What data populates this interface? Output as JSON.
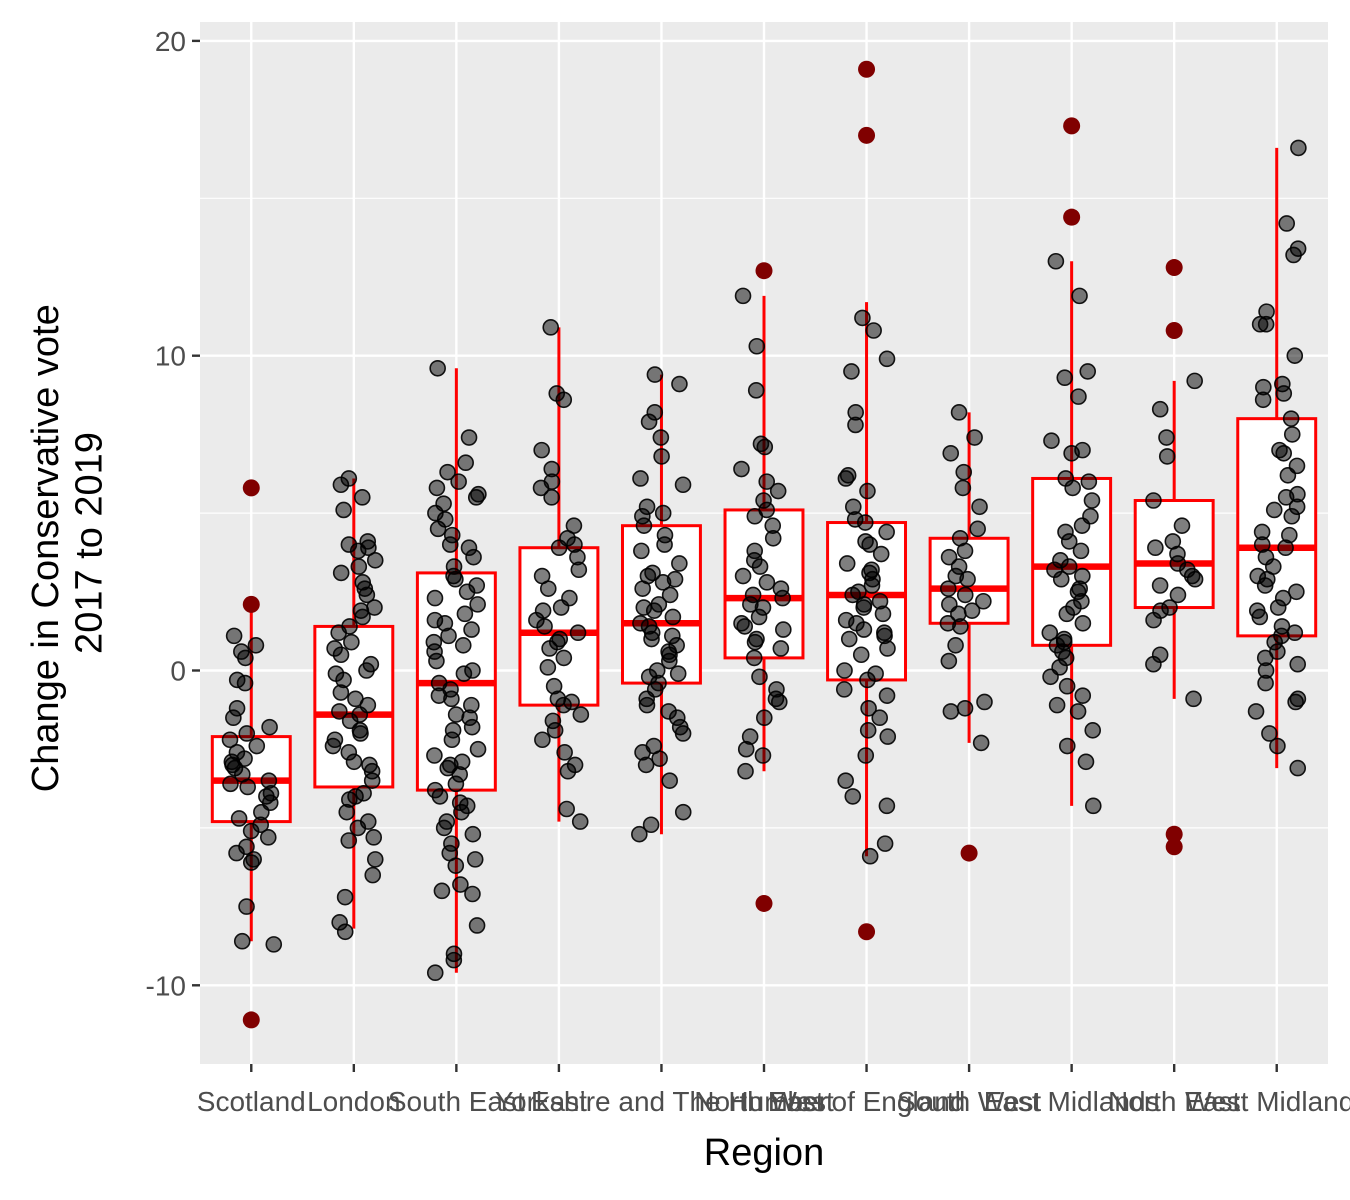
{
  "chart_data": {
    "type": "box",
    "xlabel": "Region",
    "ylabel_lines": [
      "Change in Conservative vote",
      "2017 to 2019"
    ],
    "ylim": [
      -12.5,
      20.6
    ],
    "y_ticks": [
      -10,
      0,
      10,
      20
    ],
    "y_tick_labels": [
      "-10",
      "0",
      "10",
      "20"
    ],
    "grid": true,
    "legend": "none",
    "colors": {
      "panel": "#ebebeb",
      "grid": "#ffffff",
      "box": "#ff0000",
      "box_fill": "#ffffff",
      "point": "#000000",
      "outlier": "#800000"
    },
    "categories": [
      "Scotland",
      "London",
      "South East",
      "East",
      "Yorkshire and The Humber",
      "North West",
      "East of England",
      "South West",
      "East Midlands",
      "North East",
      "West Midlands"
    ],
    "boxes": [
      {
        "q1": -4.8,
        "median": -3.5,
        "q3": -2.1,
        "whisker_low": -8.6,
        "whisker_high": 2.2,
        "outliers": [
          5.8,
          2.1,
          -11.1
        ]
      },
      {
        "q1": -3.7,
        "median": -1.4,
        "q3": 1.4,
        "whisker_low": -8.2,
        "whisker_high": 6.1,
        "outliers": []
      },
      {
        "q1": -3.8,
        "median": -0.4,
        "q3": 3.1,
        "whisker_low": -9.6,
        "whisker_high": 9.6,
        "outliers": []
      },
      {
        "q1": -1.1,
        "median": 1.2,
        "q3": 3.9,
        "whisker_low": -4.8,
        "whisker_high": 10.9,
        "outliers": []
      },
      {
        "q1": -0.4,
        "median": 1.5,
        "q3": 4.6,
        "whisker_low": -5.2,
        "whisker_high": 9.4,
        "outliers": []
      },
      {
        "q1": 0.4,
        "median": 2.3,
        "q3": 5.1,
        "whisker_low": -3.2,
        "whisker_high": 11.9,
        "outliers": [
          12.7,
          -7.4
        ]
      },
      {
        "q1": -0.3,
        "median": 2.4,
        "q3": 4.7,
        "whisker_low": -5.9,
        "whisker_high": 11.7,
        "outliers": [
          19.1,
          17.0,
          -8.3
        ]
      },
      {
        "q1": 1.5,
        "median": 2.6,
        "q3": 4.2,
        "whisker_low": -2.3,
        "whisker_high": 8.2,
        "outliers": [
          -5.8
        ]
      },
      {
        "q1": 0.8,
        "median": 3.3,
        "q3": 6.1,
        "whisker_low": -4.3,
        "whisker_high": 13.0,
        "outliers": [
          17.3,
          14.4
        ]
      },
      {
        "q1": 2.0,
        "median": 3.4,
        "q3": 5.4,
        "whisker_low": -0.9,
        "whisker_high": 9.2,
        "outliers": [
          12.8,
          10.8,
          -5.2,
          -5.6
        ]
      },
      {
        "q1": 1.1,
        "median": 3.9,
        "q3": 8.0,
        "whisker_low": -3.1,
        "whisker_high": 16.6,
        "outliers": []
      }
    ],
    "points": [
      [
        -3.5,
        -4.2,
        -2.9,
        -5.6,
        -1.8,
        -3.1,
        0.4,
        -6.1,
        -2.4,
        -4.7,
        1.1,
        -3.9,
        -7.5,
        -2.6,
        -5.1,
        0.6,
        -1.5,
        -4.5,
        -3.3,
        -8.6,
        -2.2,
        -5.3,
        -0.3,
        -4.0,
        -3.7,
        -1.2,
        -6.0,
        -2.8,
        -4.9,
        0.8,
        -3.0,
        -5.8,
        -2.0,
        -3.6,
        -8.7,
        -0.4
      ],
      [
        -1.4,
        3.8,
        -3.2,
        5.1,
        -5.4,
        0.9,
        -2.6,
        2.4,
        -4.1,
        6.1,
        -0.7,
        -8.0,
        1.7,
        -2.2,
        3.1,
        -3.9,
        4.1,
        -6.5,
        0.2,
        -1.1,
        2.8,
        -5.0,
        -2.9,
        3.5,
        -0.3,
        -7.2,
        1.2,
        -4.5,
        -1.9,
        5.5,
        0.5,
        -3.5,
        2.0,
        -8.3,
        -0.9,
        4.0,
        -2.4,
        -5.3,
        1.4,
        3.9,
        -4.0,
        -1.6,
        0.7,
        2.6,
        -3.0,
        5.9,
        -6.0,
        -0.1,
        1.9,
        -2.0,
        3.3,
        -4.8,
        -1.3,
        0.0
      ],
      [
        -0.4,
        5.6,
        -3.8,
        2.1,
        -6.2,
        7.4,
        -1.5,
        4.5,
        -9.2,
        0.9,
        -5.0,
        3.0,
        -2.7,
        6.3,
        -7.0,
        1.5,
        -4.3,
        9.6,
        -0.8,
        2.7,
        -3.3,
        5.0,
        -5.8,
        0.3,
        -1.9,
        4.0,
        -8.1,
        6.6,
        -2.2,
        1.8,
        -4.8,
        3.6,
        -0.1,
        -6.8,
        5.3,
        -3.1,
        2.3,
        -1.1,
        -9.6,
        0.6,
        -4.0,
        4.8,
        -2.5,
        6.0,
        -5.5,
        1.1,
        -3.6,
        -7.1,
        2.9,
        -0.6,
        5.8,
        -1.8,
        -4.5,
        3.3,
        0.0,
        -2.9,
        4.3,
        -6.0,
        1.3,
        -3.0,
        -9.0,
        0.8,
        2.5,
        -5.2,
        -1.4,
        5.5,
        -4.2,
        3.9,
        -0.9,
        1.6
      ],
      [
        1.2,
        3.9,
        -1.1,
        6.4,
        -3.2,
        2.3,
        8.8,
        -0.5,
        4.6,
        -4.4,
        1.6,
        10.9,
        -1.9,
        3.2,
        0.4,
        5.8,
        -2.6,
        7.0,
        1.9,
        -0.9,
        2.6,
        -4.8,
        3.6,
        0.9,
        -1.4,
        5.5,
        -2.2,
        8.6,
        1.4,
        4.2,
        0.1,
        -3.0,
        2.0,
        6.0,
        -1.0,
        3.0,
        0.7,
        -1.6,
        4.0,
        1.0
      ],
      [
        1.5,
        4.6,
        -0.4,
        3.0,
        8.2,
        -2.8,
        1.0,
        5.9,
        -5.2,
        2.4,
        0.0,
        6.8,
        -1.5,
        3.8,
        9.4,
        -0.9,
        1.9,
        -4.5,
        4.9,
        0.5,
        2.9,
        -2.0,
        7.4,
        -0.2,
        1.2,
        5.2,
        -3.5,
        2.1,
        -1.1,
        4.3,
        0.8,
        9.1,
        -2.4,
        3.4,
        1.7,
        -0.6,
        6.1,
        -3.0,
        2.6,
        0.3,
        5.0,
        -1.8,
        1.4,
        3.1,
        -4.9,
        2.0,
        -0.1,
        4.0,
        1.1,
        -1.3,
        7.9,
        2.8,
        -2.6,
        0.6
      ],
      [
        2.3,
        5.1,
        0.4,
        3.5,
        -1.5,
        7.1,
        1.4,
        10.3,
        -0.6,
        4.6,
        2.0,
        -2.7,
        6.0,
        1.0,
        3.0,
        -3.2,
        8.9,
        0.7,
        4.2,
        2.6,
        -0.2,
        5.7,
        1.7,
        11.9,
        -1.0,
        3.8,
        2.1,
        -2.1,
        6.4,
        0.9,
        4.9,
        1.3,
        -0.9,
        2.8,
        5.4,
        1.5,
        3.3,
        -2.5,
        7.2,
        2.4
      ],
      [
        2.4,
        4.7,
        -0.3,
        9.5,
        -1.9,
        3.2,
        1.3,
        6.1,
        -4.3,
        2.0,
        11.2,
        -0.8,
        4.0,
        1.6,
        -3.5,
        7.8,
        0.5,
        2.7,
        -5.5,
        3.7,
        1.0,
        9.9,
        -1.5,
        4.4,
        2.2,
        -0.1,
        5.7,
        1.8,
        -2.1,
        8.2,
        3.1,
        0.0,
        -5.9,
        2.5,
        4.8,
        1.1,
        -1.2,
        6.2,
        2.9,
        10.8,
        0.7,
        -4.0,
        3.4,
        1.5,
        -0.6,
        5.2,
        2.1,
        -2.7,
        4.1,
        1.2
      ],
      [
        2.6,
        4.2,
        1.5,
        6.9,
        -1.3,
        3.3,
        2.1,
        8.2,
        0.3,
        5.8,
        1.8,
        -2.3,
        3.8,
        2.9,
        -1.0,
        7.4,
        1.4,
        4.5,
        2.4,
        0.8,
        5.2,
        3.0,
        1.9,
        6.3,
        -1.2,
        2.2,
        3.6
      ],
      [
        3.3,
        6.1,
        0.8,
        4.6,
        -1.3,
        13.0,
        2.6,
        7.3,
        -2.4,
        3.8,
        1.2,
        9.3,
        0.1,
        5.4,
        -0.5,
        11.9,
        2.9,
        -4.3,
        4.1,
        1.8,
        6.9,
        -1.9,
        3.0,
        0.4,
        8.7,
        2.2,
        -0.2,
        4.9,
        1.5,
        6.0,
        -1.1,
        3.5,
        0.9,
        9.5,
        2.5,
        -2.9,
        4.4,
        1.0,
        7.0,
        3.2,
        -0.8,
        5.8,
        2.0,
        0.6
      ],
      [
        3.4,
        5.4,
        2.0,
        7.4,
        0.2,
        4.1,
        2.7,
        9.2,
        -0.9,
        3.7,
        1.9,
        8.3,
        3.0,
        0.5,
        4.6,
        2.4,
        6.8,
        3.2,
        1.6,
        3.9,
        2.9
      ],
      [
        3.9,
        8.0,
        1.1,
        5.6,
        -0.9,
        11.0,
        2.7,
        6.5,
        0.2,
        13.4,
        4.4,
        -2.4,
        7.0,
        1.9,
        9.0,
        3.3,
        -1.3,
        5.1,
        16.6,
        0.6,
        8.8,
        2.3,
        10.0,
        -0.4,
        4.9,
        1.4,
        6.9,
        -3.1,
        3.0,
        11.4,
        0.9,
        5.5,
        2.0,
        14.2,
        -1.0,
        7.5,
        4.0,
        1.7,
        9.1,
        0.4,
        6.2,
        2.9,
        -2.0,
        8.6,
        3.6,
        13.2,
        1.2,
        5.2,
        11.0,
        0.0,
        4.3,
        2.5
      ]
    ]
  }
}
